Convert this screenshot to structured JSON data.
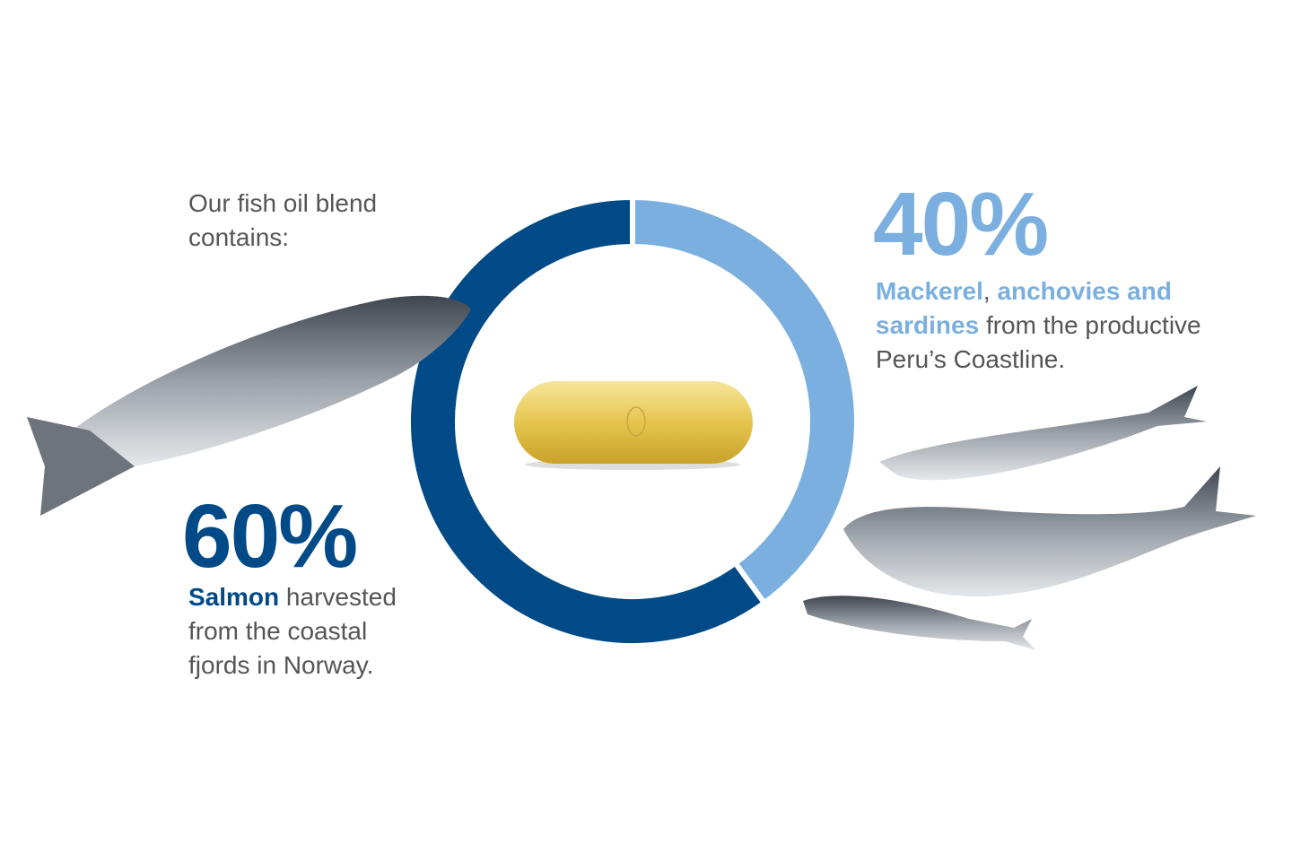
{
  "chart_data": {
    "type": "donut",
    "title": "Our fish oil blend contains:",
    "values": [
      60,
      40
    ],
    "value_labels": [
      "60%",
      "40%"
    ],
    "colors": [
      "#004a87",
      "#7aafdf"
    ],
    "descriptions": [
      [
        {
          "text": "Salmon",
          "bold": true
        },
        {
          "text": " harvested from the coastal fjords in Norway."
        }
      ],
      [
        {
          "text": "Mackerel",
          "bold": true
        },
        {
          "text": ", "
        },
        {
          "text": "anchovies and sardines",
          "bold": true
        },
        {
          "text": " from the productive Peru’s Coastline."
        }
      ]
    ]
  }
}
